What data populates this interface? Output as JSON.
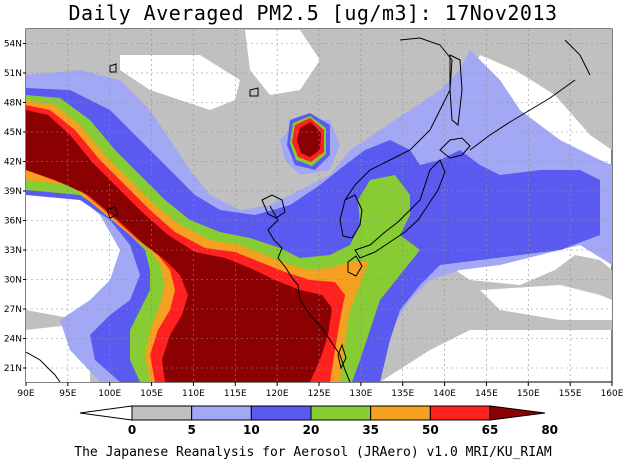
{
  "title": "Daily Averaged PM2.5 [ug/m3]: 17Nov2013",
  "footer": "The Japanese Reanalysis for Aerosol (JRAero) v1.0 MRI/KU_RIAM",
  "map": {
    "lon_labels": [
      "90E",
      "95E",
      "100E",
      "105E",
      "110E",
      "115E",
      "120E",
      "125E",
      "130E",
      "135E",
      "140E",
      "145E",
      "150E",
      "155E",
      "160E"
    ],
    "lat_labels": [
      "21N",
      "24N",
      "27N",
      "30N",
      "33N",
      "36N",
      "39N",
      "42N",
      "45N",
      "48N",
      "51N",
      "54N"
    ]
  },
  "colorbar": {
    "labels": [
      "0",
      "5",
      "10",
      "20",
      "35",
      "50",
      "65",
      "80"
    ],
    "colors": [
      "#ffffff",
      "#c0c0c0",
      "#a3a8f5",
      "#5a5af0",
      "#88cc33",
      "#f5a020",
      "#ff2020",
      "#8b0000"
    ]
  },
  "palette": {
    "bg": "#ffffff",
    "coast": "#000000",
    "grid": "#c8c8c8"
  }
}
